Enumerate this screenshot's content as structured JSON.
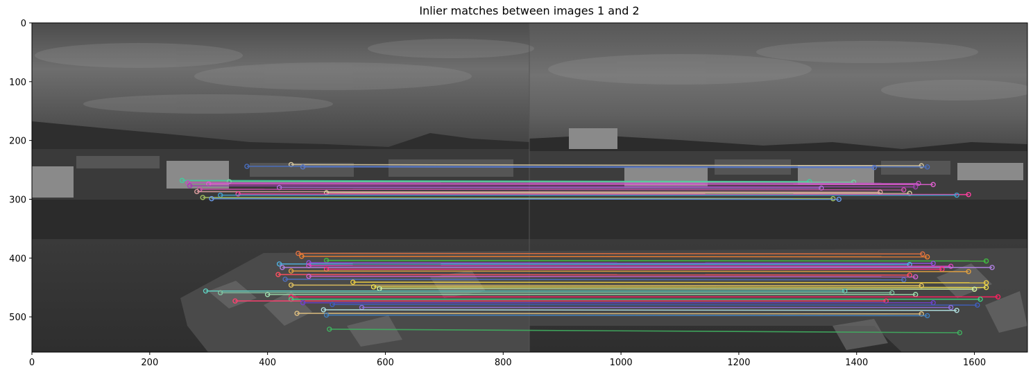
{
  "title": "Inlier matches between images 1 and 2",
  "axes": {
    "x_ticks": [
      "0",
      "200",
      "400",
      "600",
      "800",
      "1000",
      "1200",
      "1400",
      "1600"
    ],
    "y_ticks": [
      "0",
      "100",
      "200",
      "300",
      "400",
      "500"
    ],
    "xlim": [
      0,
      1690
    ],
    "ylim": [
      560,
      0
    ]
  },
  "image": {
    "left_image_width": 845,
    "description_colors": {
      "sky_top": "#4a4a4a",
      "sky_mid": "#6a6a6a",
      "hills": "#2a2a2a",
      "buildings": "#3c3c3c",
      "rocks": "#2f2f2f",
      "sea": "#353535",
      "breakwater": "#5a5a5a"
    }
  },
  "matches": [
    {
      "y1": 241,
      "x1": 440,
      "x2": 1510,
      "y2": 243,
      "color": "#d8c8a0"
    },
    {
      "y1": 244,
      "x1": 365,
      "x2": 1520,
      "y2": 245,
      "color": "#4a6fbf"
    },
    {
      "y1": 245,
      "x1": 460,
      "x2": 1430,
      "y2": 246,
      "color": "#5a78c8"
    },
    {
      "y1": 268,
      "x1": 255,
      "x2": 1320,
      "y2": 270,
      "color": "#3fcf9f"
    },
    {
      "y1": 270,
      "x1": 335,
      "x2": 1395,
      "y2": 271,
      "color": "#70d0a0"
    },
    {
      "y1": 272,
      "x1": 265,
      "x2": 1505,
      "y2": 273,
      "color": "#c050c0"
    },
    {
      "y1": 274,
      "x1": 300,
      "x2": 1530,
      "y2": 275,
      "color": "#e060d0"
    },
    {
      "y1": 277,
      "x1": 268,
      "x2": 1500,
      "y2": 279,
      "color": "#a040b0"
    },
    {
      "y1": 280,
      "x1": 420,
      "x2": 1340,
      "y2": 281,
      "color": "#b070e0"
    },
    {
      "y1": 283,
      "x1": 285,
      "x2": 1480,
      "y2": 284,
      "color": "#d050b0"
    },
    {
      "y1": 287,
      "x1": 280,
      "x2": 1440,
      "y2": 288,
      "color": "#e0a0a0"
    },
    {
      "y1": 289,
      "x1": 500,
      "x2": 1490,
      "y2": 290,
      "color": "#d8d0a0"
    },
    {
      "y1": 291,
      "x1": 350,
      "x2": 1590,
      "y2": 292,
      "color": "#ff40a0"
    },
    {
      "y1": 293,
      "x1": 320,
      "x2": 1570,
      "y2": 293,
      "color": "#40a0d0"
    },
    {
      "y1": 297,
      "x1": 290,
      "x2": 1360,
      "y2": 299,
      "color": "#a0c060"
    },
    {
      "y1": 299,
      "x1": 305,
      "x2": 1370,
      "y2": 300,
      "color": "#6a9ae8"
    },
    {
      "y1": 392,
      "x1": 452,
      "x2": 1512,
      "y2": 393,
      "color": "#e07040"
    },
    {
      "y1": 397,
      "x1": 458,
      "x2": 1520,
      "y2": 398,
      "color": "#f08030"
    },
    {
      "y1": 404,
      "x1": 500,
      "x2": 1620,
      "y2": 405,
      "color": "#40c040"
    },
    {
      "y1": 408,
      "x1": 470,
      "x2": 1530,
      "y2": 409,
      "color": "#9050e0"
    },
    {
      "y1": 410,
      "x1": 420,
      "x2": 1490,
      "y2": 411,
      "color": "#50b0e0"
    },
    {
      "y1": 413,
      "x1": 470,
      "x2": 1560,
      "y2": 414,
      "color": "#e040c0"
    },
    {
      "y1": 416,
      "x1": 425,
      "x2": 1630,
      "y2": 416,
      "color": "#b080e0"
    },
    {
      "y1": 419,
      "x1": 500,
      "x2": 1545,
      "y2": 419,
      "color": "#ff3080"
    },
    {
      "y1": 422,
      "x1": 440,
      "x2": 1590,
      "y2": 423,
      "color": "#e0a040"
    },
    {
      "y1": 428,
      "x1": 418,
      "x2": 1490,
      "y2": 429,
      "color": "#ff5060"
    },
    {
      "y1": 431,
      "x1": 470,
      "x2": 1500,
      "y2": 432,
      "color": "#d060d0"
    },
    {
      "y1": 436,
      "x1": 430,
      "x2": 1480,
      "y2": 437,
      "color": "#5070c0"
    },
    {
      "y1": 441,
      "x1": 545,
      "x2": 1620,
      "y2": 442,
      "color": "#f0d040"
    },
    {
      "y1": 446,
      "x1": 440,
      "x2": 1510,
      "y2": 447,
      "color": "#e0c060"
    },
    {
      "y1": 449,
      "x1": 580,
      "x2": 1620,
      "y2": 450,
      "color": "#f0e050"
    },
    {
      "y1": 452,
      "x1": 590,
      "x2": 1600,
      "y2": 453,
      "color": "#d0f0a0"
    },
    {
      "y1": 456,
      "x1": 295,
      "x2": 1380,
      "y2": 456,
      "color": "#60d0c0"
    },
    {
      "y1": 459,
      "x1": 320,
      "x2": 1460,
      "y2": 459,
      "color": "#80c0a0"
    },
    {
      "y1": 462,
      "x1": 400,
      "x2": 1500,
      "y2": 462,
      "color": "#a0e0b0"
    },
    {
      "y1": 466,
      "x1": 440,
      "x2": 1640,
      "y2": 466,
      "color": "#ff2060"
    },
    {
      "y1": 470,
      "x1": 440,
      "x2": 1610,
      "y2": 470,
      "color": "#40d080"
    },
    {
      "y1": 473,
      "x1": 345,
      "x2": 1450,
      "y2": 473,
      "color": "#ff4070"
    },
    {
      "y1": 476,
      "x1": 460,
      "x2": 1530,
      "y2": 476,
      "color": "#7040d0"
    },
    {
      "y1": 479,
      "x1": 510,
      "x2": 1605,
      "y2": 480,
      "color": "#4060c0"
    },
    {
      "y1": 484,
      "x1": 560,
      "x2": 1560,
      "y2": 484,
      "color": "#9070e0"
    },
    {
      "y1": 488,
      "x1": 495,
      "x2": 1570,
      "y2": 489,
      "color": "#b0e0e0"
    },
    {
      "y1": 494,
      "x1": 450,
      "x2": 1510,
      "y2": 495,
      "color": "#e0c080"
    },
    {
      "y1": 497,
      "x1": 500,
      "x2": 1520,
      "y2": 498,
      "color": "#4080c0"
    },
    {
      "y1": 521,
      "x1": 505,
      "x2": 1575,
      "y2": 527,
      "color": "#40b060"
    }
  ]
}
